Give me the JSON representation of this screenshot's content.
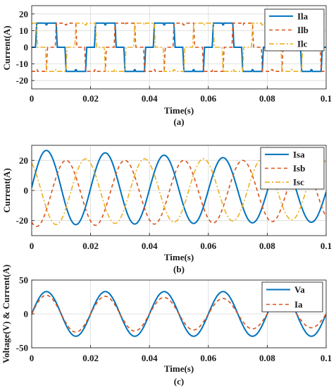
{
  "colors": {
    "blue": "#0072BD",
    "orange": "#D95319",
    "yellow": "#EDB120"
  },
  "chart_data": [
    {
      "type": "line",
      "caption": "(a)",
      "xlabel": "Time(s)",
      "ylabel": "Current(A)",
      "xlim": [
        0,
        0.1
      ],
      "ylim": [
        -25,
        25
      ],
      "xticks": [
        0,
        0.02,
        0.04,
        0.06,
        0.08,
        0.1
      ],
      "xticklabels": [
        "0",
        "0.02",
        "0.04",
        "0.06",
        "0.08",
        "0.1"
      ],
      "yticks": [
        20,
        10,
        0,
        -10,
        -20
      ],
      "yticklabels": [
        "20",
        "10",
        "0",
        "-10",
        "-20"
      ],
      "grid": true,
      "legend_position": "top-right",
      "series": [
        {
          "name": "Ila",
          "color": "#0072BD",
          "style": "solid",
          "waveform": "quasi-square",
          "amplitude": 14.5,
          "frequency_hz": 50,
          "phase_deg": 0
        },
        {
          "name": "Ilb",
          "color": "#D95319",
          "style": "dash",
          "waveform": "quasi-square",
          "amplitude": 14.5,
          "frequency_hz": 50,
          "phase_deg": -120
        },
        {
          "name": "Ilc",
          "color": "#EDB120",
          "style": "dashdot",
          "waveform": "quasi-square",
          "amplitude": 14.5,
          "frequency_hz": 50,
          "phase_deg": 120
        }
      ]
    },
    {
      "type": "line",
      "caption": "(b)",
      "xlabel": "Time(s)",
      "ylabel": "Current(A)",
      "xlim": [
        0,
        0.1
      ],
      "ylim": [
        -30,
        30
      ],
      "xticks": [
        0,
        0.02,
        0.04,
        0.06,
        0.08,
        0.1
      ],
      "xticklabels": [
        "0",
        "0.02",
        "0.04",
        "0.06",
        "0.08",
        "0.1"
      ],
      "yticks": [
        20,
        0,
        -20
      ],
      "yticklabels": [
        "20",
        "0",
        "-20"
      ],
      "grid": true,
      "legend_position": "top-right",
      "series": [
        {
          "name": "Isa",
          "color": "#0072BD",
          "style": "solid",
          "waveform": "sine",
          "amplitude_start": 25,
          "amplitude_end": 20,
          "offset_start": 2,
          "offset_end": -1,
          "frequency_hz": 50,
          "phase_deg": 0
        },
        {
          "name": "Isb",
          "color": "#D95319",
          "style": "dash",
          "waveform": "sine",
          "amplitude_start": 22,
          "amplitude_end": 20,
          "offset_start": -2,
          "offset_end": 0,
          "frequency_hz": 50,
          "phase_deg": -120
        },
        {
          "name": "Isc",
          "color": "#EDB120",
          "style": "dashdot",
          "waveform": "sine",
          "amplitude_start": 22,
          "amplitude_end": 20,
          "offset_start": -1,
          "offset_end": 1,
          "frequency_hz": 50,
          "phase_deg": 120
        }
      ]
    },
    {
      "type": "line",
      "caption": "(c)",
      "xlabel": "Time(s)",
      "ylabel": "Voltage(V) & Current(A)",
      "xlim": [
        0,
        0.1
      ],
      "ylim": [
        -50,
        50
      ],
      "xticks": [
        0,
        0.02,
        0.04,
        0.06,
        0.08,
        0.1
      ],
      "xticklabels": [
        "0",
        "0.02",
        "0.04",
        "0.06",
        "0.08",
        "0.1"
      ],
      "yticks": [
        50,
        0,
        -50
      ],
      "yticklabels": [
        "50",
        "0",
        "-50"
      ],
      "grid": true,
      "legend_position": "top-right",
      "series": [
        {
          "name": "Va",
          "color": "#0072BD",
          "style": "solid",
          "waveform": "sine",
          "amplitude": 33,
          "frequency_hz": 50,
          "phase_deg": 0
        },
        {
          "name": "Ia",
          "color": "#D95319",
          "style": "dash",
          "waveform": "sine",
          "amplitude_start": 28,
          "amplitude_end": 20,
          "frequency_hz": 50,
          "phase_deg": 0
        }
      ]
    }
  ]
}
